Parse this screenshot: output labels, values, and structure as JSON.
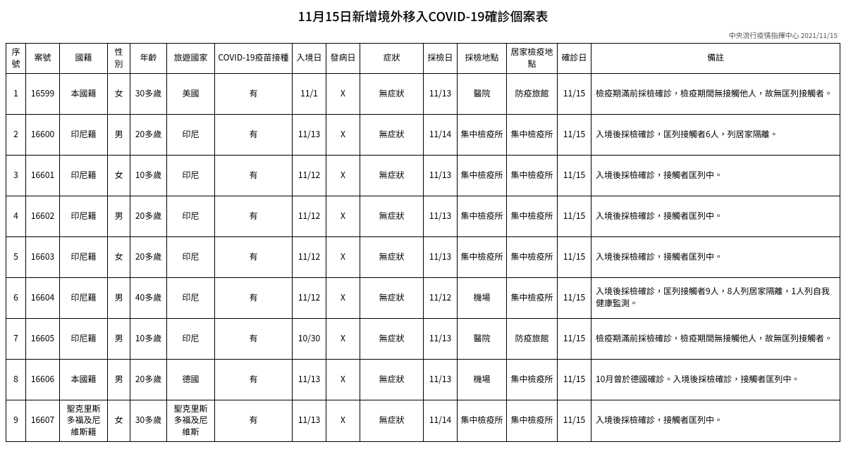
{
  "title": "11月15日新增境外移入COVID-19確診個案表",
  "source": "中央流行疫情指揮中心 2021/11/15",
  "headers": {
    "seq": "序號",
    "caseNo": "案號",
    "nationality": "國籍",
    "sex": "性別",
    "age": "年齡",
    "country": "旅遊國家",
    "vaccine": "COVID-19疫苗接種",
    "entryDate": "入境日",
    "onsetDate": "發病日",
    "symptom": "症狀",
    "testDate": "採檢日",
    "testLocation": "採檢地點",
    "quarLocation": "居家檢疫地點",
    "confirmDate": "確診日",
    "remark": "備註"
  },
  "rows": [
    {
      "seq": "1",
      "caseNo": "16599",
      "nationality": "本國籍",
      "sex": "女",
      "age": "30多歲",
      "country": "美國",
      "vaccine": "有",
      "entryDate": "11/1",
      "onsetDate": "X",
      "symptom": "無症狀",
      "testDate": "11/13",
      "testLocation": "醫院",
      "quarLocation": "防疫旅館",
      "confirmDate": "11/15",
      "remark": "檢疫期滿前採檢確診，檢疫期間無接觸他人，故無匡列接觸者。"
    },
    {
      "seq": "2",
      "caseNo": "16600",
      "nationality": "印尼籍",
      "sex": "男",
      "age": "20多歲",
      "country": "印尼",
      "vaccine": "有",
      "entryDate": "11/13",
      "onsetDate": "X",
      "symptom": "無症狀",
      "testDate": "11/14",
      "testLocation": "集中檢疫所",
      "quarLocation": "集中檢疫所",
      "confirmDate": "11/15",
      "remark": "入境後採檢確診，匡列接觸者6人，列居家隔離。"
    },
    {
      "seq": "3",
      "caseNo": "16601",
      "nationality": "印尼籍",
      "sex": "女",
      "age": "10多歲",
      "country": "印尼",
      "vaccine": "有",
      "entryDate": "11/12",
      "onsetDate": "X",
      "symptom": "無症狀",
      "testDate": "11/13",
      "testLocation": "集中檢疫所",
      "quarLocation": "集中檢疫所",
      "confirmDate": "11/15",
      "remark": "入境後採檢確診，接觸者匡列中。"
    },
    {
      "seq": "4",
      "caseNo": "16602",
      "nationality": "印尼籍",
      "sex": "男",
      "age": "20多歲",
      "country": "印尼",
      "vaccine": "有",
      "entryDate": "11/12",
      "onsetDate": "X",
      "symptom": "無症狀",
      "testDate": "11/13",
      "testLocation": "集中檢疫所",
      "quarLocation": "集中檢疫所",
      "confirmDate": "11/15",
      "remark": "入境後採檢確診，接觸者匡列中。"
    },
    {
      "seq": "5",
      "caseNo": "16603",
      "nationality": "印尼籍",
      "sex": "女",
      "age": "20多歲",
      "country": "印尼",
      "vaccine": "有",
      "entryDate": "11/12",
      "onsetDate": "X",
      "symptom": "無症狀",
      "testDate": "11/13",
      "testLocation": "集中檢疫所",
      "quarLocation": "集中檢疫所",
      "confirmDate": "11/15",
      "remark": "入境後採檢確診，接觸者匡列中。"
    },
    {
      "seq": "6",
      "caseNo": "16604",
      "nationality": "印尼籍",
      "sex": "男",
      "age": "40多歲",
      "country": "印尼",
      "vaccine": "有",
      "entryDate": "11/12",
      "onsetDate": "X",
      "symptom": "無症狀",
      "testDate": "11/12",
      "testLocation": "機場",
      "quarLocation": "集中檢疫所",
      "confirmDate": "11/15",
      "remark": "入境後採檢確診，匡列接觸者9人，8人列居家隔離，1人列自我健康監測。"
    },
    {
      "seq": "7",
      "caseNo": "16605",
      "nationality": "印尼籍",
      "sex": "男",
      "age": "10多歲",
      "country": "印尼",
      "vaccine": "有",
      "entryDate": "10/30",
      "onsetDate": "X",
      "symptom": "無症狀",
      "testDate": "11/13",
      "testLocation": "醫院",
      "quarLocation": "防疫旅館",
      "confirmDate": "11/15",
      "remark": "檢疫期滿前採檢確診，檢疫期間無接觸他人，故無匡列接觸者。"
    },
    {
      "seq": "8",
      "caseNo": "16606",
      "nationality": "本國籍",
      "sex": "男",
      "age": "20多歲",
      "country": "德國",
      "vaccine": "有",
      "entryDate": "11/13",
      "onsetDate": "X",
      "symptom": "無症狀",
      "testDate": "11/13",
      "testLocation": "機場",
      "quarLocation": "集中檢疫所",
      "confirmDate": "11/15",
      "remark": "10月曾於德國確診。入境後採檢確診，接觸者匡列中。"
    },
    {
      "seq": "9",
      "caseNo": "16607",
      "nationality": "聖克里斯多福及尼維斯籍",
      "sex": "女",
      "age": "30多歲",
      "country": "聖克里斯多福及尼維斯",
      "vaccine": "有",
      "entryDate": "11/13",
      "onsetDate": "X",
      "symptom": "無症狀",
      "testDate": "11/14",
      "testLocation": "集中檢疫所",
      "quarLocation": "集中檢疫所",
      "confirmDate": "11/15",
      "remark": "入境後採檢確診，接觸者匡列中。"
    }
  ]
}
